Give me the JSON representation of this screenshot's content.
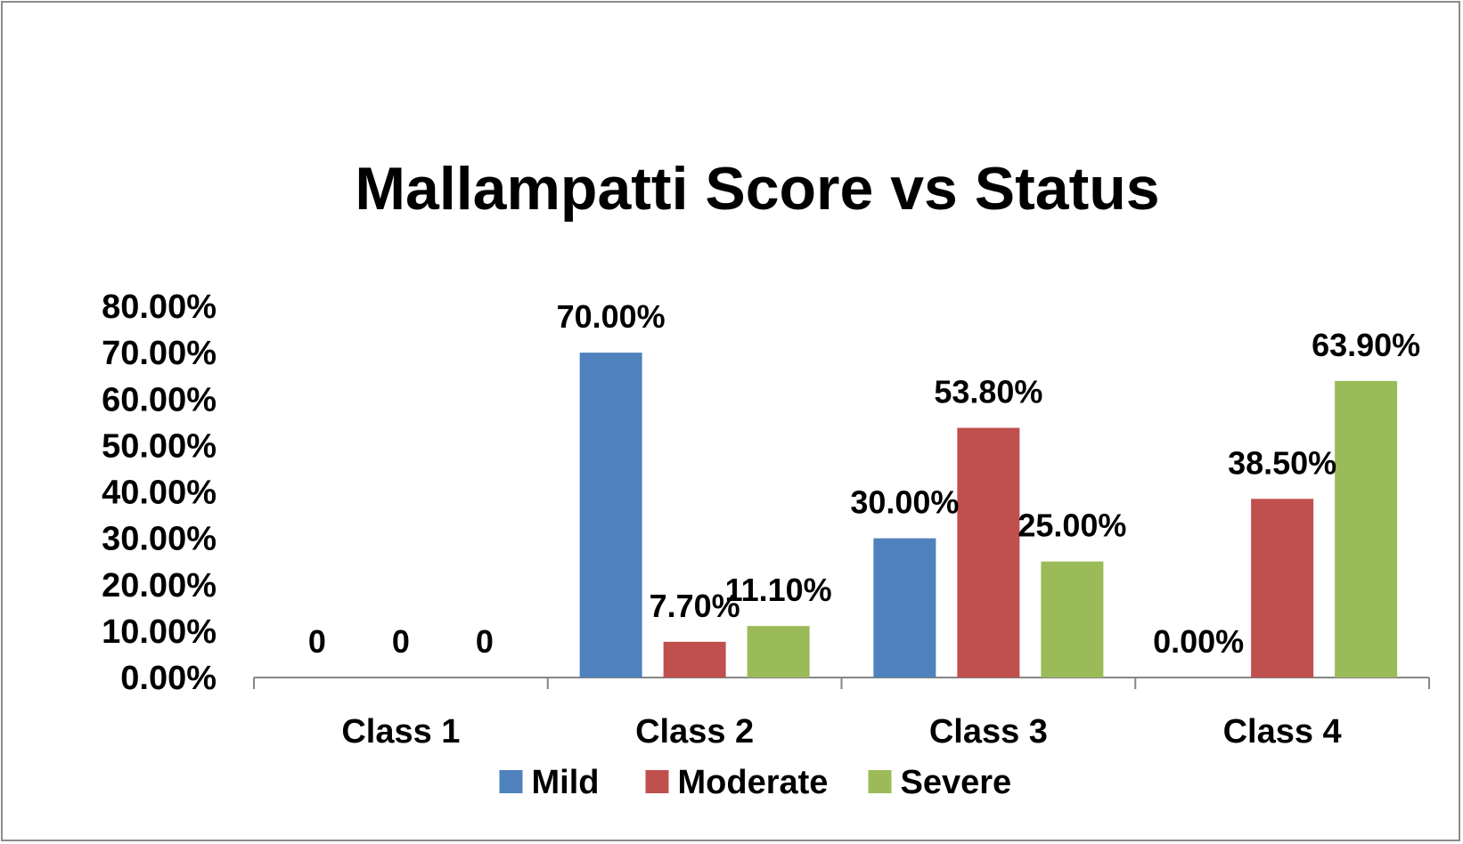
{
  "chart_data": {
    "type": "bar",
    "title": "Mallampatti Score vs Status",
    "xlabel": "",
    "ylabel": "",
    "categories": [
      "Class 1",
      "Class 2",
      "Class 3",
      "Class 4"
    ],
    "series": [
      {
        "name": "Mild",
        "color": "#4f81bd",
        "values": [
          0,
          70.0,
          30.0,
          0.0
        ],
        "labels": [
          "0",
          "70.00%",
          "30.00%",
          "0.00%"
        ]
      },
      {
        "name": "Moderate",
        "color": "#c0504d",
        "values": [
          0,
          7.7,
          53.8,
          38.5
        ],
        "labels": [
          "0",
          "7.70%",
          "53.80%",
          "38.50%"
        ]
      },
      {
        "name": "Severe",
        "color": "#9bbb59",
        "values": [
          0,
          11.1,
          25.0,
          63.9
        ],
        "labels": [
          "0",
          "11.10%",
          "25.00%",
          "63.90%"
        ]
      }
    ],
    "ylim": [
      0,
      80
    ],
    "yticks": [
      0,
      10,
      20,
      30,
      40,
      50,
      60,
      70,
      80
    ],
    "ytick_labels": [
      "0.00%",
      "10.00%",
      "20.00%",
      "30.00%",
      "40.00%",
      "50.00%",
      "60.00%",
      "70.00%",
      "80.00%"
    ],
    "grid": false,
    "legend_position": "bottom"
  }
}
